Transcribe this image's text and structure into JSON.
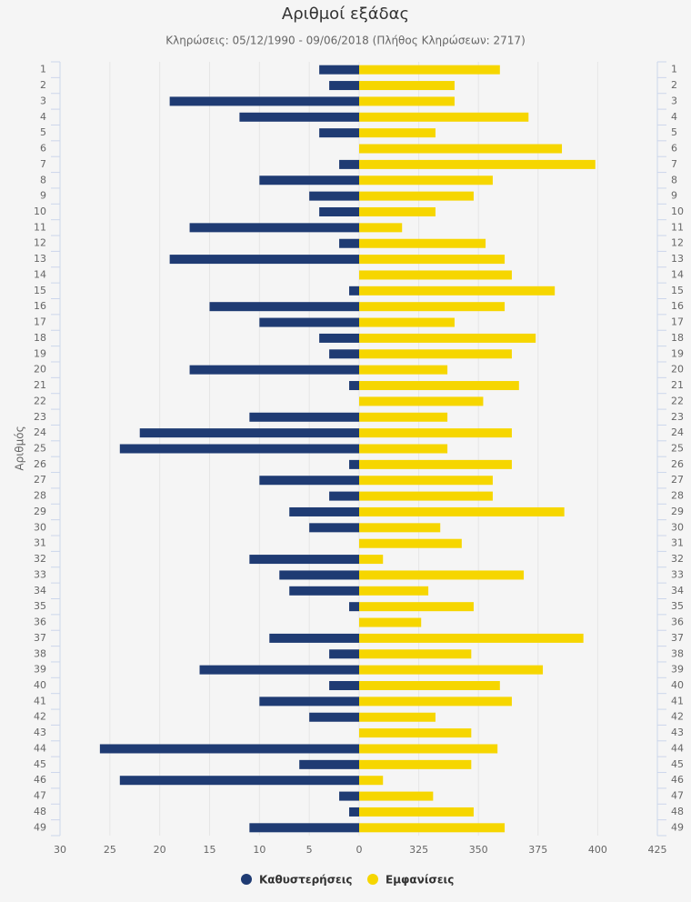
{
  "chart_data": {
    "type": "butterfly",
    "title": "Αριθμοί εξάδας",
    "subtitle": "Κληρώσεις: 05/12/1990 - 09/06/2018 (Πλήθος Κληρώσεων: 2717)",
    "y_label": "Αριθμός",
    "categories": [
      "1",
      "2",
      "3",
      "4",
      "5",
      "6",
      "7",
      "8",
      "9",
      "10",
      "11",
      "12",
      "13",
      "14",
      "15",
      "16",
      "17",
      "18",
      "19",
      "20",
      "21",
      "22",
      "23",
      "24",
      "25",
      "26",
      "27",
      "28",
      "29",
      "30",
      "31",
      "32",
      "33",
      "34",
      "35",
      "36",
      "37",
      "38",
      "39",
      "40",
      "41",
      "42",
      "43",
      "44",
      "45",
      "46",
      "47",
      "48",
      "49"
    ],
    "series": [
      {
        "name": "Καθυστερήσεις",
        "color": "#1f3b73",
        "axis": "x",
        "values": [
          4,
          3,
          19,
          12,
          4,
          0,
          2,
          10,
          5,
          4,
          17,
          2,
          19,
          0,
          1,
          15,
          10,
          4,
          3,
          17,
          1,
          0,
          11,
          22,
          24,
          1,
          10,
          3,
          7,
          5,
          0,
          11,
          8,
          7,
          1,
          0,
          9,
          3,
          16,
          3,
          10,
          5,
          0,
          26,
          6,
          24,
          2,
          1,
          11
        ]
      },
      {
        "name": "Εμφανίσεις",
        "color": "#f6d600",
        "axis": "x2",
        "values": [
          359,
          340,
          340,
          371,
          332,
          385,
          399,
          356,
          348,
          332,
          318,
          353,
          361,
          364,
          382,
          361,
          340,
          374,
          364,
          337,
          367,
          352,
          337,
          364,
          337,
          364,
          356,
          356,
          386,
          334,
          343,
          310,
          369,
          329,
          348,
          326,
          394,
          347,
          377,
          359,
          364,
          332,
          347,
          358,
          347,
          310,
          331,
          348,
          361
        ]
      }
    ],
    "xlim": [
      30,
      0
    ],
    "xticks": [
      30,
      25,
      20,
      15,
      10,
      5,
      0
    ],
    "x2lim": [
      300,
      425
    ],
    "x2ticks": [
      325,
      350,
      375,
      400,
      425
    ],
    "grid": true,
    "legend": "bottom"
  }
}
